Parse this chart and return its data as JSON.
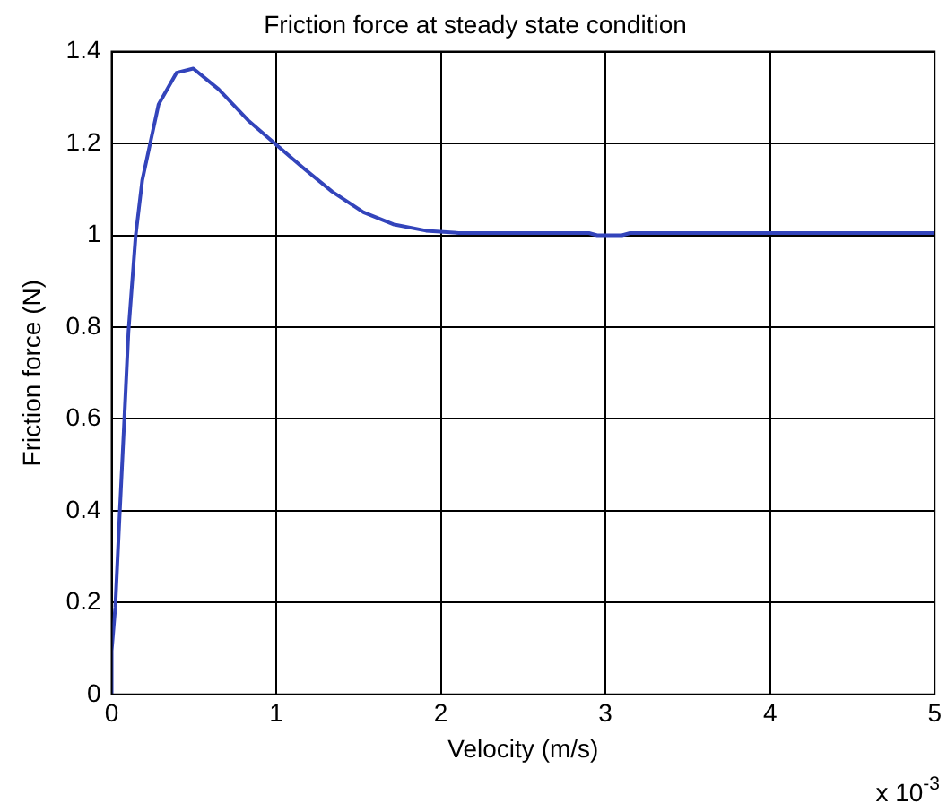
{
  "chart_data": {
    "type": "line",
    "title": "Friction force at steady state condition",
    "xlabel": "Velocity (m/s)",
    "ylabel": "Friction force (N)",
    "annotations": [
      "x 10$^{-3}$"
    ],
    "series": [
      {
        "color": "#3344bb",
        "x": [
          0,
          0.0,
          0.022,
          0.047,
          0.073,
          0.102,
          0.146,
          0.186,
          0.24,
          0.285,
          0.394,
          0.496,
          0.65,
          0.83,
          1.0,
          1.16,
          1.34,
          1.53,
          1.71,
          1.91,
          2.11,
          2.5,
          2.9,
          2.95,
          3.1,
          3.15,
          4,
          5
        ],
        "values": [
          0,
          0.095,
          0.19,
          0.38,
          0.57,
          0.79,
          1.0,
          1.12,
          1.21,
          1.285,
          1.354,
          1.363,
          1.318,
          1.25,
          1.197,
          1.148,
          1.095,
          1.05,
          1.024,
          1.01,
          1.005,
          1.005,
          1.005,
          1.0,
          1.0,
          1.005,
          1.005,
          1.005
        ]
      }
    ],
    "xlim": [
      0,
      5
    ],
    "xticks": [
      0,
      1,
      2,
      3,
      4,
      5
    ],
    "ylim": [
      0,
      1.4
    ],
    "yticks": [
      0,
      0.2,
      0.4,
      0.6,
      0.8,
      1,
      1.2,
      1.4
    ],
    "grid": true,
    "legend": false,
    "marker": "none",
    "line_style": "solid"
  }
}
